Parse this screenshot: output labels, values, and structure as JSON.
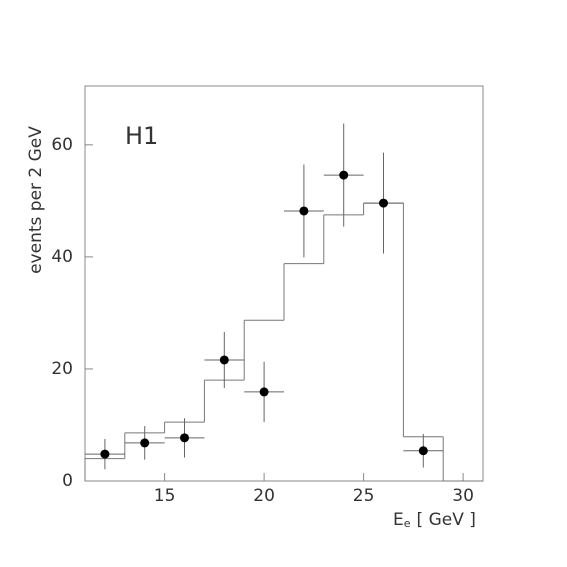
{
  "chart_data": {
    "type": "histogram",
    "annotation": "H1",
    "ylabel": "events per 2 GeV",
    "xlabel": "E",
    "xlabel_sub": "e",
    "xlabel_unit": "[ GeV ]",
    "bins": [
      11,
      13,
      15,
      17,
      19,
      21,
      23,
      25,
      27,
      29,
      31
    ],
    "values": [
      4.0,
      8.6,
      10.5,
      18.0,
      28.7,
      38.8,
      47.5,
      49.6,
      7.9,
      0
    ],
    "color": "#777777",
    "data_points": {
      "x": [
        12,
        14,
        16,
        18,
        20,
        22,
        24,
        26,
        28
      ],
      "values": [
        4.8,
        6.8,
        7.7,
        21.6,
        15.9,
        48.2,
        54.6,
        49.6,
        5.4
      ],
      "errors": [
        2.7,
        3.0,
        3.5,
        5.0,
        5.4,
        8.3,
        9.2,
        9.0,
        3.0
      ],
      "xerr": [
        1,
        1,
        1,
        1,
        1,
        1,
        1,
        1,
        1
      ],
      "color": "#000000"
    },
    "xlim": [
      11,
      31
    ],
    "ylim": [
      0,
      70.5
    ],
    "xticks": [
      15,
      20,
      25,
      30
    ],
    "yticks": [
      0,
      20,
      40,
      60
    ],
    "grid": false
  }
}
